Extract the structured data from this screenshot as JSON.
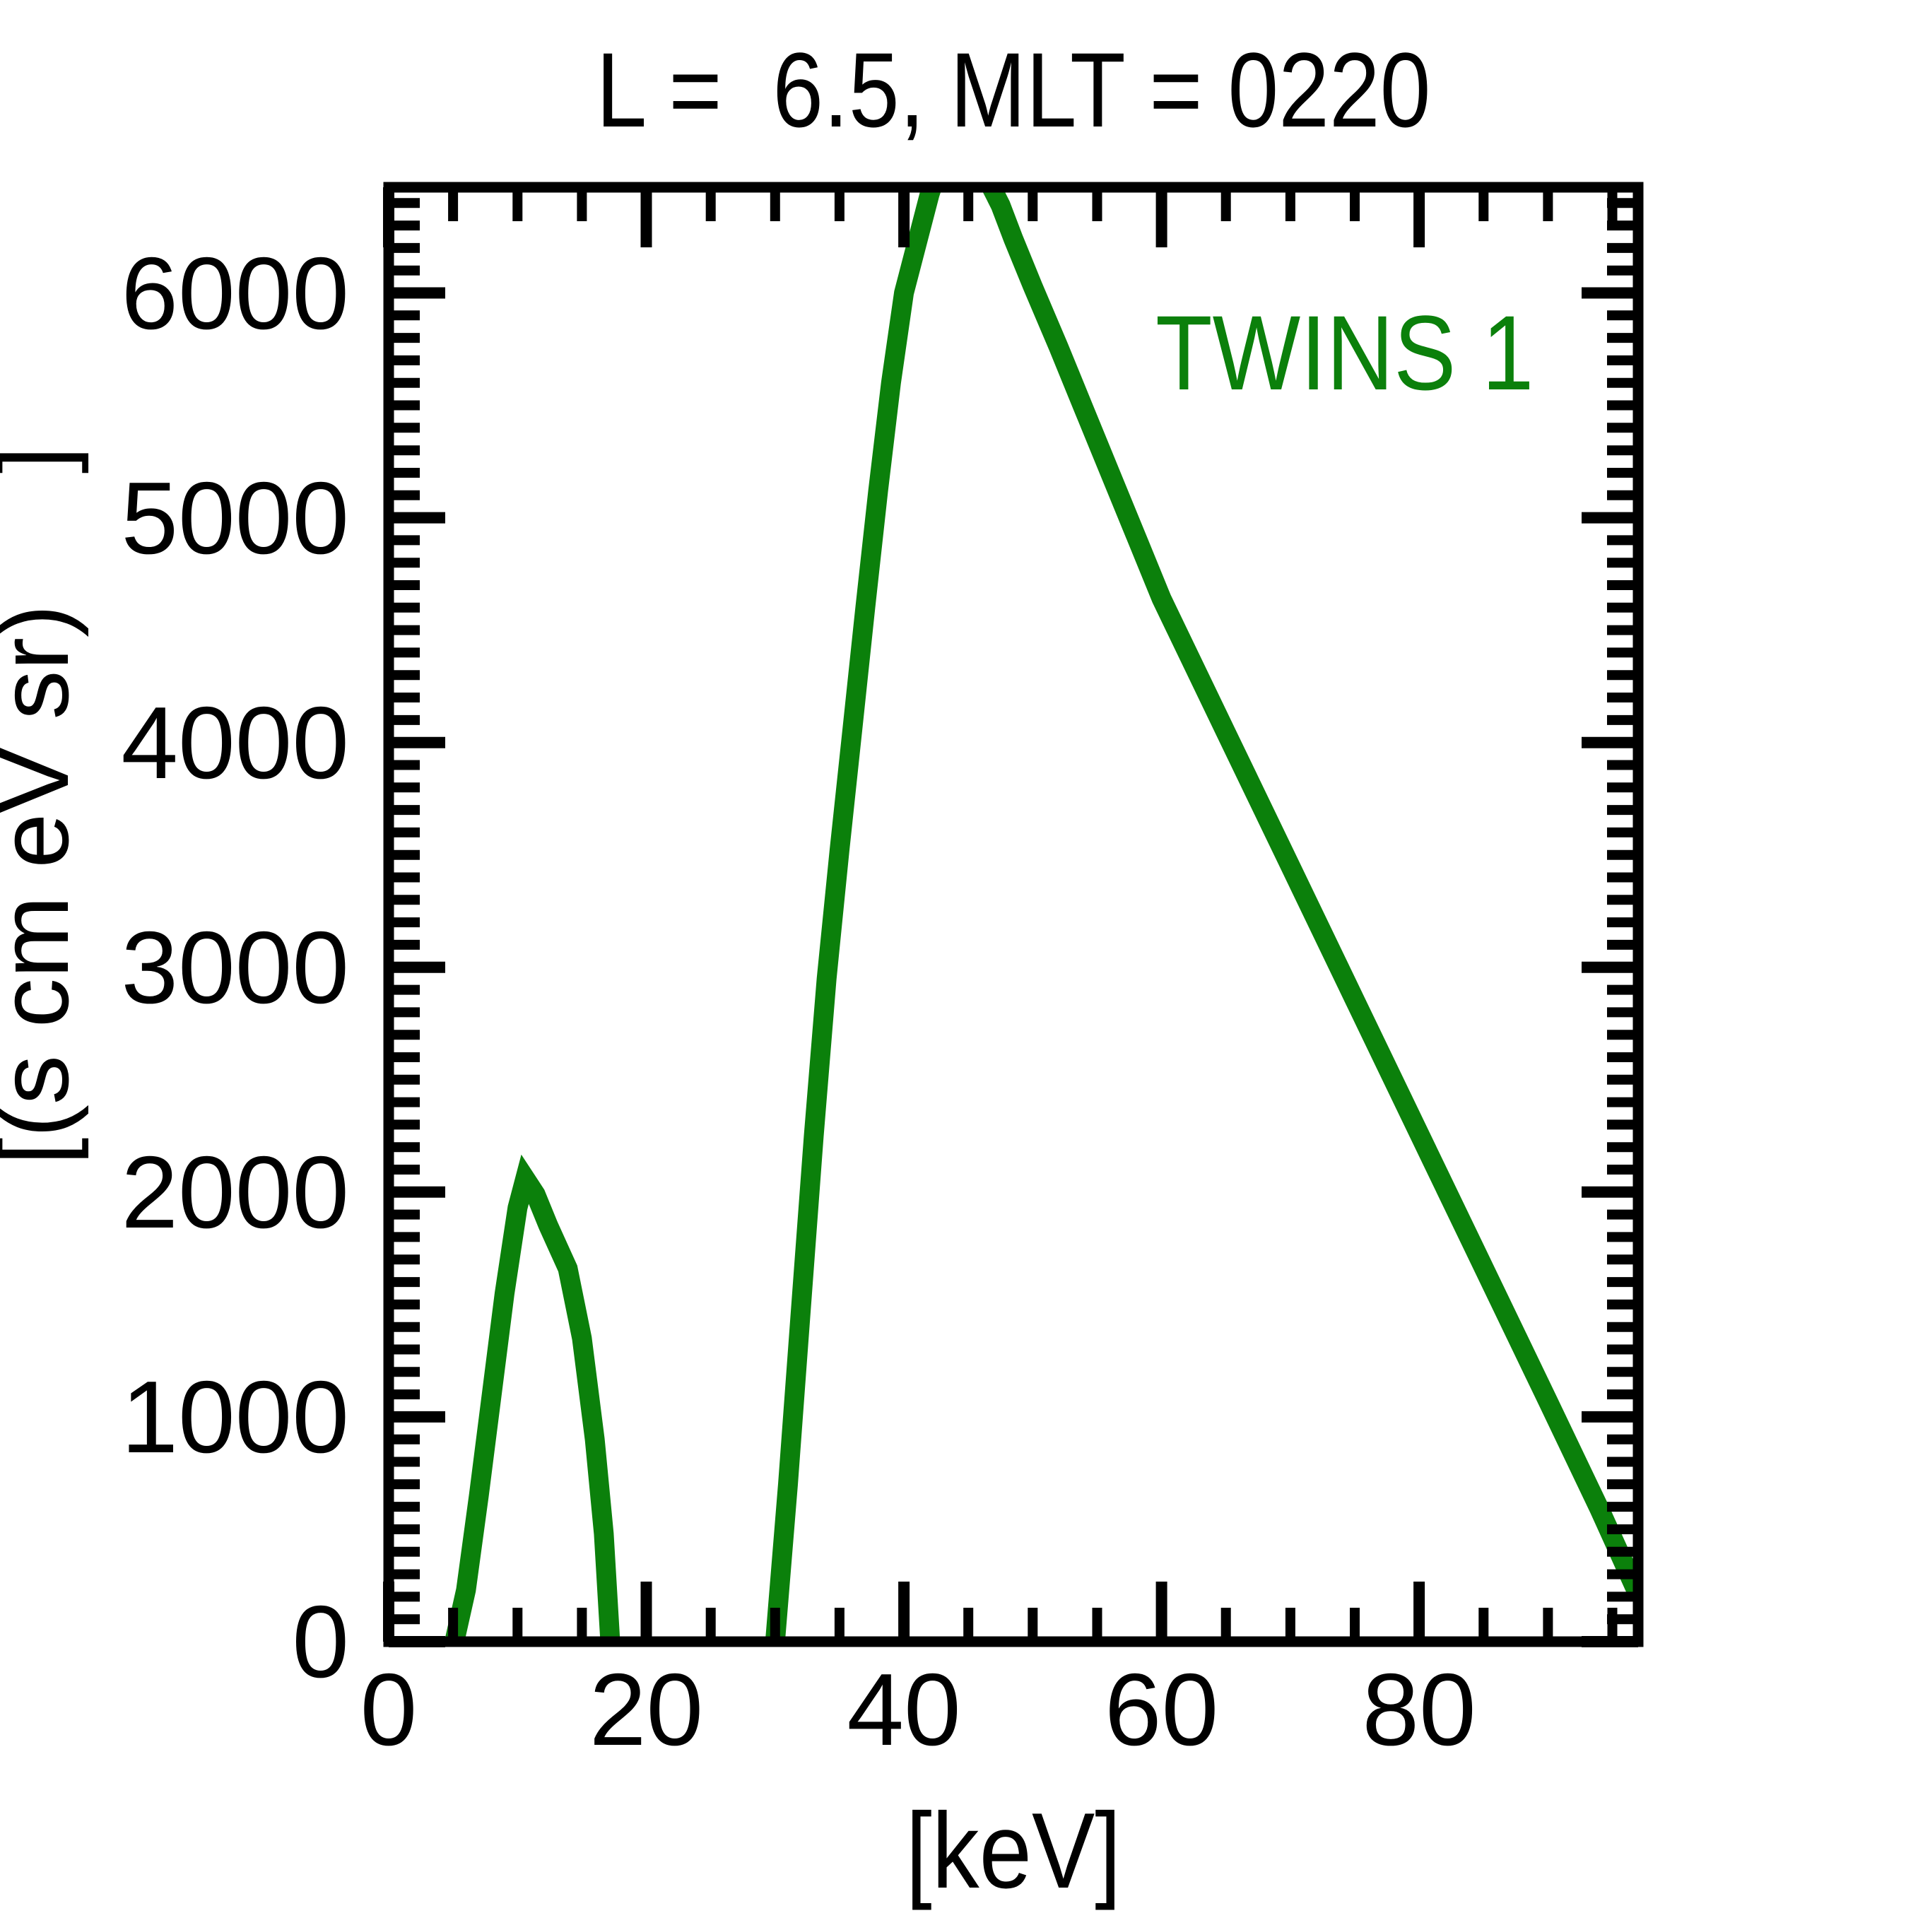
{
  "title": "L =  6.5, MLT = 0220",
  "legend": {
    "label": "TWINS 1"
  },
  "colors": {
    "series_green": "#0b800b",
    "axis_black": "#000000",
    "background": "#ffffff"
  },
  "axes": {
    "xlabel": "[keV]",
    "ylabel_visible": "[(s cm eV sr) ]",
    "ylabel_main": "[(s cm eV sr)",
    "ylabel_close_bracket": "]",
    "x_tick_labels": [
      "0",
      "20",
      "40",
      "60",
      "80"
    ],
    "y_tick_labels": [
      "0",
      "1000",
      "2000",
      "3000",
      "4000",
      "5000",
      "6000"
    ]
  },
  "chart_data": {
    "type": "line",
    "title": "L =  6.5, MLT = 0220",
    "xlabel": "[keV]",
    "ylabel": "[(s cm eV sr) ]",
    "xlim": [
      0,
      97
    ],
    "ylim": [
      0,
      6470
    ],
    "grid": false,
    "legend_position": "upper right",
    "x_major_ticks": [
      0,
      20,
      40,
      60,
      80
    ],
    "x_minor_step": 5,
    "y_major_ticks": [
      0,
      1000,
      2000,
      3000,
      4000,
      5000,
      6000
    ],
    "y_minor_step": 100,
    "series": [
      {
        "name": "TWINS 1",
        "color": "#0b800b",
        "style": "solid",
        "clipped_at_top": true,
        "segments": [
          [
            [
              5.1,
              0
            ],
            [
              6,
              230
            ],
            [
              7,
              650
            ],
            [
              8,
              1100
            ],
            [
              9,
              1550
            ],
            [
              10,
              1930
            ],
            [
              10.6,
              2060
            ],
            [
              11.4,
              1990
            ],
            [
              12.4,
              1850
            ],
            [
              13.9,
              1660
            ],
            [
              15,
              1350
            ],
            [
              16,
              900
            ],
            [
              16.7,
              480
            ],
            [
              17.2,
              0
            ]
          ],
          [
            [
              30,
              0
            ],
            [
              31,
              700
            ],
            [
              32,
              1480
            ],
            [
              33,
              2250
            ],
            [
              34,
              2950
            ],
            [
              35,
              3520
            ],
            [
              36,
              4060
            ],
            [
              37,
              4600
            ],
            [
              38,
              5120
            ],
            [
              39,
              5600
            ],
            [
              40,
              6000
            ],
            [
              41,
              6220
            ],
            [
              42,
              6440
            ],
            [
              42.8,
              6580
            ],
            [
              44,
              6670
            ],
            [
              45,
              6660
            ],
            [
              46,
              6570
            ],
            [
              46.8,
              6470
            ],
            [
              47.5,
              6390
            ],
            [
              48.5,
              6240
            ],
            [
              50,
              6030
            ],
            [
              52,
              5760
            ],
            [
              54,
              5480
            ],
            [
              56,
              5200
            ],
            [
              58,
              4920
            ],
            [
              60,
              4640
            ],
            [
              65,
              4045
            ],
            [
              70,
              3450
            ],
            [
              75,
              2855
            ],
            [
              80,
              2260
            ],
            [
              85,
              1665
            ],
            [
              90,
              1070
            ],
            [
              94,
              590
            ],
            [
              97,
              210
            ]
          ]
        ]
      }
    ]
  }
}
